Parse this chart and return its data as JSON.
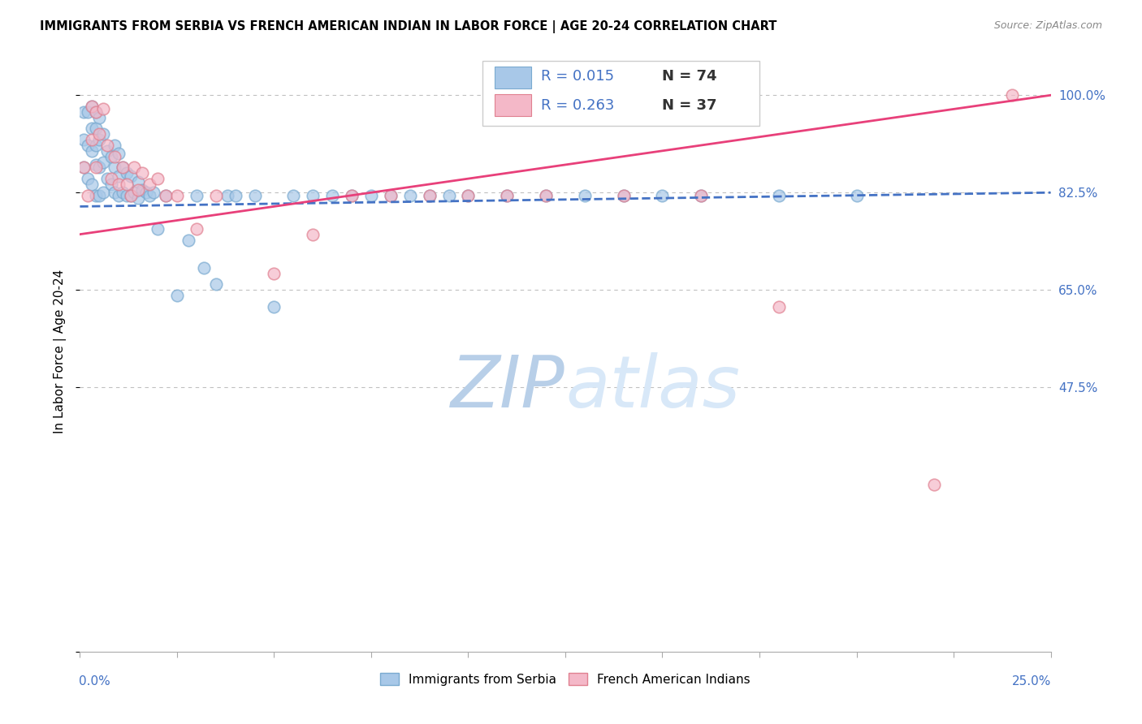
{
  "title": "IMMIGRANTS FROM SERBIA VS FRENCH AMERICAN INDIAN IN LABOR FORCE | AGE 20-24 CORRELATION CHART",
  "source": "Source: ZipAtlas.com",
  "ylabel": "In Labor Force | Age 20-24",
  "xmin": 0.0,
  "xmax": 0.25,
  "ymin": 0.0,
  "ymax": 1.08,
  "serbia_color": "#a8c8e8",
  "serbia_edge": "#7aaad0",
  "french_color": "#f4b8c8",
  "french_edge": "#e08090",
  "trend_blue_color": "#4472c4",
  "trend_pink_color": "#e8407a",
  "watermark_color": "#d0e4f8",
  "serbia_x": [
    0.001,
    0.001,
    0.001,
    0.002,
    0.002,
    0.002,
    0.003,
    0.003,
    0.003,
    0.003,
    0.004,
    0.004,
    0.004,
    0.004,
    0.004,
    0.005,
    0.005,
    0.005,
    0.005,
    0.006,
    0.006,
    0.006,
    0.007,
    0.007,
    0.008,
    0.008,
    0.009,
    0.009,
    0.009,
    0.01,
    0.01,
    0.01,
    0.011,
    0.011,
    0.012,
    0.012,
    0.013,
    0.013,
    0.014,
    0.015,
    0.015,
    0.016,
    0.017,
    0.018,
    0.019,
    0.02,
    0.022,
    0.025,
    0.028,
    0.03,
    0.032,
    0.035,
    0.038,
    0.04,
    0.045,
    0.05,
    0.055,
    0.06,
    0.065,
    0.07,
    0.075,
    0.08,
    0.085,
    0.09,
    0.095,
    0.1,
    0.11,
    0.12,
    0.13,
    0.14,
    0.15,
    0.16,
    0.18,
    0.2
  ],
  "serbia_y": [
    0.97,
    0.92,
    0.87,
    0.97,
    0.91,
    0.85,
    0.98,
    0.94,
    0.9,
    0.84,
    0.97,
    0.94,
    0.91,
    0.875,
    0.82,
    0.96,
    0.92,
    0.87,
    0.82,
    0.93,
    0.88,
    0.825,
    0.9,
    0.85,
    0.89,
    0.84,
    0.91,
    0.87,
    0.825,
    0.895,
    0.855,
    0.82,
    0.87,
    0.825,
    0.86,
    0.82,
    0.855,
    0.82,
    0.825,
    0.845,
    0.815,
    0.83,
    0.825,
    0.82,
    0.825,
    0.76,
    0.82,
    0.64,
    0.74,
    0.82,
    0.69,
    0.66,
    0.82,
    0.82,
    0.82,
    0.62,
    0.82,
    0.82,
    0.82,
    0.82,
    0.82,
    0.82,
    0.82,
    0.82,
    0.82,
    0.82,
    0.82,
    0.82,
    0.82,
    0.82,
    0.82,
    0.82,
    0.82,
    0.82
  ],
  "french_x": [
    0.001,
    0.002,
    0.003,
    0.003,
    0.004,
    0.004,
    0.005,
    0.006,
    0.007,
    0.008,
    0.009,
    0.01,
    0.011,
    0.012,
    0.013,
    0.014,
    0.015,
    0.016,
    0.018,
    0.02,
    0.022,
    0.025,
    0.03,
    0.035,
    0.05,
    0.06,
    0.07,
    0.08,
    0.09,
    0.1,
    0.11,
    0.12,
    0.14,
    0.16,
    0.18,
    0.22,
    0.24
  ],
  "french_y": [
    0.87,
    0.82,
    0.98,
    0.92,
    0.97,
    0.87,
    0.93,
    0.975,
    0.91,
    0.85,
    0.89,
    0.84,
    0.87,
    0.84,
    0.82,
    0.87,
    0.83,
    0.86,
    0.84,
    0.85,
    0.82,
    0.82,
    0.76,
    0.82,
    0.68,
    0.75,
    0.82,
    0.82,
    0.82,
    0.82,
    0.82,
    0.82,
    0.82,
    0.82,
    0.62,
    0.3,
    1.0
  ],
  "trend_blue_x0": 0.0,
  "trend_blue_y0": 0.8,
  "trend_blue_x1": 0.25,
  "trend_blue_y1": 0.825,
  "trend_pink_x0": 0.0,
  "trend_pink_y0": 0.75,
  "trend_pink_x1": 0.25,
  "trend_pink_y1": 1.0
}
